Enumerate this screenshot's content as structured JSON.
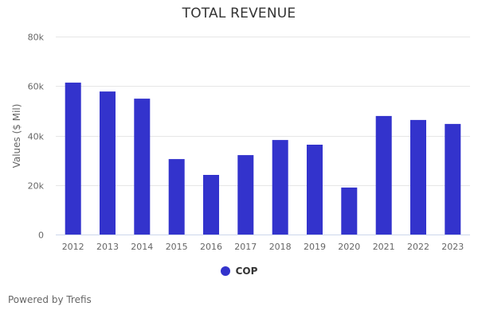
{
  "chart_data": {
    "type": "bar",
    "title": "TOTAL REVENUE",
    "xlabel": "",
    "ylabel": "Values ($ Mil)",
    "categories": [
      "2012",
      "2013",
      "2014",
      "2015",
      "2016",
      "2017",
      "2018",
      "2019",
      "2020",
      "2021",
      "2022",
      "2023"
    ],
    "series": [
      {
        "name": "COP",
        "color": "#3333cc",
        "values": [
          61400,
          57800,
          54900,
          30500,
          24100,
          32100,
          38200,
          36300,
          19000,
          47900,
          46300,
          44700
        ]
      }
    ],
    "ylim": [
      0,
      80000
    ],
    "yticks": [
      0,
      20000,
      40000,
      60000,
      80000
    ],
    "ytick_labels": [
      "0",
      "20k",
      "40k",
      "60k",
      "80k"
    ],
    "grid": true,
    "legend": "bottom-center"
  },
  "footer": {
    "credit": "Powered by Trefis"
  }
}
